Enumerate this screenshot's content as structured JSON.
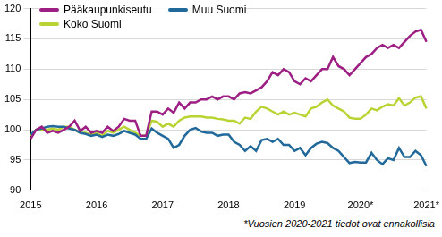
{
  "chart_data": {
    "type": "line",
    "note": "*Vuosien 2020-2021 tiedot ovat ennakollisia",
    "categories": [
      "2015",
      null,
      null,
      null,
      null,
      null,
      null,
      null,
      null,
      null,
      null,
      null,
      "2016",
      null,
      null,
      null,
      null,
      null,
      null,
      null,
      null,
      null,
      null,
      null,
      "2017",
      null,
      null,
      null,
      null,
      null,
      null,
      null,
      null,
      null,
      null,
      null,
      "2018",
      null,
      null,
      null,
      null,
      null,
      null,
      null,
      null,
      null,
      null,
      null,
      "2019",
      null,
      null,
      null,
      null,
      null,
      null,
      null,
      null,
      null,
      null,
      null,
      "2020*",
      null,
      null,
      null,
      null,
      null,
      null,
      null,
      null,
      null,
      null,
      null,
      "2021*"
    ],
    "series": [
      {
        "name": "Pääkaupunkiseutu",
        "color": "#9e1f83",
        "values": [
          98.5,
          100,
          100.5,
          99.5,
          99.8,
          99.5,
          100,
          100.5,
          101.5,
          99.8,
          100.5,
          99.5,
          99.8,
          99.5,
          100.5,
          99.8,
          100.5,
          101.8,
          101.5,
          101.5,
          99,
          99,
          103,
          103,
          102.5,
          103.5,
          102.8,
          104.5,
          103.5,
          104.5,
          104.5,
          105,
          105,
          105.5,
          105,
          105.5,
          105.5,
          105,
          106,
          106.2,
          106,
          106.5,
          107,
          108,
          109.5,
          109,
          110,
          109.5,
          108,
          107.5,
          108.5,
          108,
          109,
          110,
          110,
          112,
          110.5,
          110,
          109,
          110,
          111,
          112,
          112.5,
          113.5,
          114,
          113.5,
          114,
          113.5,
          114.5,
          115.5,
          116.2,
          116.5,
          114.5
        ]
      },
      {
        "name": "Muu Suomi",
        "color": "#21699a",
        "values": [
          99.2,
          100,
          100.2,
          100.5,
          100.6,
          100.5,
          100.5,
          100.2,
          100,
          99.5,
          99.3,
          99,
          99.2,
          98.8,
          99.2,
          99,
          99.3,
          99.8,
          99.5,
          99.2,
          98.5,
          98.5,
          100.2,
          99.5,
          99,
          98.5,
          97,
          97.5,
          99,
          100,
          100.3,
          99.7,
          99.5,
          99.5,
          99,
          99.2,
          99.2,
          98,
          97.5,
          96.5,
          97.3,
          96.5,
          98.3,
          98.5,
          98,
          98.5,
          97.5,
          97.5,
          96.5,
          97,
          95.8,
          97,
          97.7,
          98,
          97.8,
          97,
          96.5,
          95.5,
          94.5,
          94.7,
          94.6,
          94.6,
          96.2,
          95,
          94.3,
          95.3,
          95,
          97,
          95.5,
          95.5,
          96.5,
          95.8,
          94
        ]
      },
      {
        "name": "Koko Suomi",
        "color": "#b8d433",
        "values": [
          99,
          100,
          100,
          100,
          100.2,
          100,
          100.5,
          100.5,
          100,
          99.5,
          99.5,
          99.2,
          99.5,
          99,
          99.8,
          99.5,
          100,
          100.5,
          100,
          99.5,
          99,
          99,
          101.5,
          101.3,
          100.5,
          101,
          100.5,
          101.5,
          102,
          102.2,
          102.2,
          102.2,
          102,
          102,
          101.8,
          101.7,
          101.5,
          101.5,
          101,
          102,
          101.8,
          103,
          103.8,
          103.5,
          103,
          102.5,
          103,
          102.5,
          102.8,
          102.5,
          102.2,
          103.5,
          103.8,
          104.5,
          105,
          104,
          103.5,
          103,
          102,
          101.8,
          101.8,
          102.5,
          103.5,
          103.2,
          103.8,
          104.2,
          104,
          105.2,
          104,
          104.5,
          105.3,
          105.5,
          103.5
        ]
      }
    ],
    "ylim": [
      90,
      120
    ],
    "yticks": [
      90,
      95,
      100,
      105,
      110,
      115,
      120
    ],
    "grid": true,
    "legend": "top-left"
  }
}
